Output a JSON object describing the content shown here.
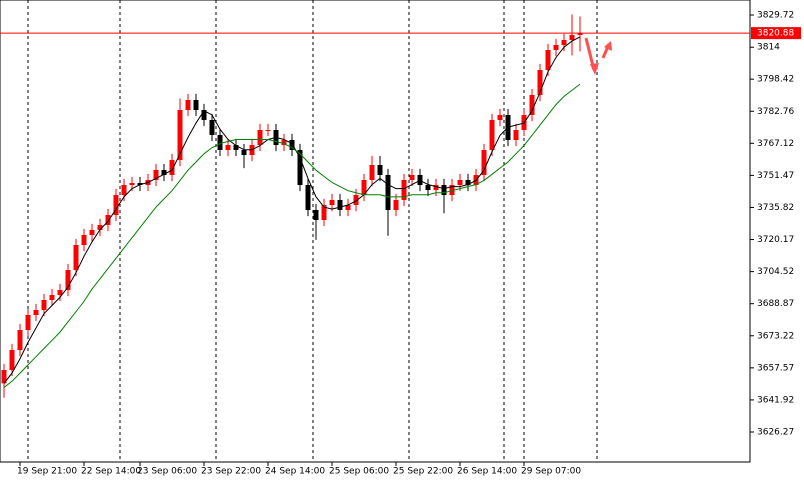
{
  "chart_data": {
    "type": "candlestick",
    "categories": [
      null,
      null,
      "19 Sep 21:00",
      null,
      null,
      null,
      null,
      null,
      null,
      null,
      "22 Sep 14:00",
      null,
      null,
      null,
      null,
      null,
      null,
      "23 Sep 06:00",
      null,
      null,
      null,
      null,
      null,
      null,
      null,
      "23 Sep 22:00",
      null,
      null,
      null,
      null,
      null,
      null,
      null,
      "24 Sep 14:00",
      null,
      null,
      null,
      null,
      null,
      null,
      null,
      "25 Sep 06:00",
      null,
      null,
      null,
      null,
      null,
      null,
      null,
      "25 Sep 22:00",
      null,
      null,
      null,
      null,
      null,
      null,
      null,
      "26 Sep 14:00",
      null,
      null,
      null,
      null,
      null,
      null,
      null,
      "29 Sep 07:00",
      null,
      null,
      null,
      null,
      null,
      null,
      null
    ],
    "open": [
      3650.0,
      3656.52,
      3666.28,
      3676.03,
      3683.35,
      3685.79,
      3690.67,
      3693.11,
      3695.55,
      3705.31,
      3717.5,
      3722.38,
      3724.82,
      3727.26,
      3732.14,
      3741.9,
      3746.78,
      3747.75,
      3746.78,
      3749.22,
      3754.1,
      3751.66,
      3758.98,
      3783.37,
      3788.25,
      3783.37,
      3778.49,
      3771.17,
      3763.86,
      3766.3,
      3763.86,
      3761.41,
      3766.3,
      3773.61,
      3773.61,
      3766.3,
      3768.73,
      3763.86,
      3746.78,
      3734.58,
      3729.7,
      3737.02,
      3739.46,
      3734.58,
      3737.02,
      3741.9,
      3749.22,
      3756.54,
      3751.66,
      3734.58,
      3739.46,
      3749.22,
      3751.66,
      3746.78,
      3744.34,
      3746.78,
      3741.9,
      3746.78,
      3749.22,
      3746.78,
      3751.66,
      3763.86,
      3778.49,
      3780.93,
      3768.73,
      3773.61,
      3780.93,
      3790.69,
      3802.89,
      3812.64,
      3815.08,
      3817.52,
      3819.96
    ],
    "high": [
      3659.52,
      3669.28,
      3679.03,
      3686.35,
      3688.79,
      3693.67,
      3696.11,
      3698.55,
      3708.31,
      3720.5,
      3725.38,
      3727.82,
      3730.26,
      3735.14,
      3744.9,
      3749.78,
      3750.75,
      3750.75,
      3752.22,
      3757.1,
      3757.1,
      3761.98,
      3789.0,
      3791.25,
      3791.25,
      3786.37,
      3781.49,
      3774.17,
      3769.3,
      3769.3,
      3766.86,
      3769.3,
      3776.61,
      3776.61,
      3776.61,
      3771.73,
      3771.73,
      3766.86,
      3749.78,
      3737.58,
      3740.02,
      3742.46,
      3742.46,
      3740.02,
      3744.9,
      3752.22,
      3761.0,
      3761.0,
      3754.66,
      3742.46,
      3752.22,
      3754.66,
      3754.66,
      3749.78,
      3749.78,
      3749.78,
      3749.78,
      3752.22,
      3752.22,
      3754.66,
      3766.86,
      3781.49,
      3783.93,
      3783.93,
      3776.61,
      3783.93,
      3793.69,
      3805.89,
      3815.64,
      3818.08,
      3820.52,
      3830.0,
      3829.0
    ],
    "low": [
      3643.0,
      3653.52,
      3663.28,
      3673.03,
      3680.35,
      3682.79,
      3687.67,
      3690.11,
      3692.55,
      3702.31,
      3714.5,
      3719.38,
      3721.82,
      3724.26,
      3729.14,
      3738.9,
      3743.78,
      3743.78,
      3743.78,
      3746.22,
      3748.66,
      3748.66,
      3755.98,
      3780.37,
      3780.37,
      3775.49,
      3768.17,
      3760.86,
      3760.86,
      3760.86,
      3755.0,
      3758.41,
      3763.3,
      3770.61,
      3763.3,
      3763.3,
      3760.86,
      3743.78,
      3731.58,
      3720.0,
      3726.7,
      3734.02,
      3731.58,
      3731.58,
      3734.02,
      3738.9,
      3746.22,
      3748.66,
      3722.0,
      3731.58,
      3736.46,
      3746.22,
      3743.78,
      3741.34,
      3741.34,
      3733.0,
      3738.9,
      3743.78,
      3743.78,
      3743.78,
      3748.66,
      3760.86,
      3775.49,
      3765.73,
      3765.73,
      3770.61,
      3777.93,
      3787.69,
      3799.89,
      3809.64,
      3812.08,
      3810.0,
      3812.0
    ],
    "close": [
      3656.52,
      3666.28,
      3676.03,
      3683.35,
      3685.79,
      3690.67,
      3693.11,
      3695.55,
      3705.31,
      3717.5,
      3722.38,
      3724.82,
      3727.26,
      3732.14,
      3741.9,
      3746.78,
      3747.75,
      3746.78,
      3749.22,
      3754.1,
      3751.66,
      3758.98,
      3783.37,
      3788.25,
      3783.37,
      3778.49,
      3771.17,
      3763.86,
      3766.3,
      3763.86,
      3761.41,
      3766.3,
      3773.61,
      3773.61,
      3766.3,
      3768.73,
      3763.86,
      3746.78,
      3734.58,
      3729.7,
      3737.02,
      3739.46,
      3734.58,
      3737.02,
      3741.9,
      3749.22,
      3756.54,
      3751.66,
      3734.58,
      3739.46,
      3749.22,
      3751.66,
      3746.78,
      3744.34,
      3746.78,
      3741.9,
      3746.78,
      3749.22,
      3746.78,
      3751.66,
      3763.86,
      3778.49,
      3780.93,
      3768.73,
      3773.61,
      3780.93,
      3790.69,
      3802.89,
      3812.64,
      3815.08,
      3817.52,
      3819.96,
      3820.88
    ],
    "up_color": "#ff0000",
    "down_color": "#000000",
    "series": [
      {
        "color": "#000000",
        "values": [
          3650,
          3655,
          3662,
          3670,
          3677,
          3684,
          3688,
          3692,
          3697,
          3704,
          3712,
          3719,
          3725,
          3729,
          3735,
          3741,
          3745,
          3747,
          3748,
          3750,
          3752,
          3754,
          3762,
          3770,
          3777,
          3783,
          3781,
          3774,
          3769,
          3766,
          3764,
          3764,
          3766,
          3769,
          3770,
          3769,
          3767,
          3760,
          3750,
          3741,
          3736,
          3735,
          3736,
          3737,
          3739,
          3742,
          3747,
          3750,
          3747,
          3745,
          3745,
          3747,
          3749,
          3747,
          3746,
          3745,
          3746,
          3746,
          3747,
          3749,
          3754,
          3763,
          3771,
          3775,
          3776,
          3777,
          3783,
          3792,
          3802,
          3809,
          3814,
          3817,
          3819
        ]
      },
      {
        "color": "#008000",
        "values": [
          3648,
          3651,
          3655,
          3659,
          3663,
          3667,
          3671,
          3675,
          3680,
          3685,
          3690,
          3696,
          3701,
          3706,
          3711,
          3716,
          3721,
          3726,
          3731,
          3736,
          3740,
          3744,
          3749,
          3754,
          3758,
          3762,
          3765,
          3767,
          3768,
          3769,
          3769,
          3769,
          3769,
          3769,
          3768,
          3767,
          3765,
          3762,
          3758,
          3754,
          3751,
          3748,
          3746,
          3744,
          3743,
          3742,
          3742,
          3742,
          3741,
          3741,
          3741,
          3742,
          3742,
          3742,
          3743,
          3743,
          3744,
          3745,
          3746,
          3747,
          3749,
          3752,
          3755,
          3758,
          3762,
          3766,
          3771,
          3776,
          3781,
          3786,
          3790,
          3793,
          3796
        ]
      }
    ],
    "current_price": 3820.88,
    "current_price_color": "#ff0000",
    "ylim": [
      3611.63,
      3837.04
    ],
    "yticks": [
      3626.27,
      3641.92,
      3657.57,
      3673.22,
      3688.87,
      3704.52,
      3720.17,
      3735.82,
      3751.47,
      3767.12,
      3782.76,
      3798.42,
      3814.0,
      3829.72
    ]
  }
}
